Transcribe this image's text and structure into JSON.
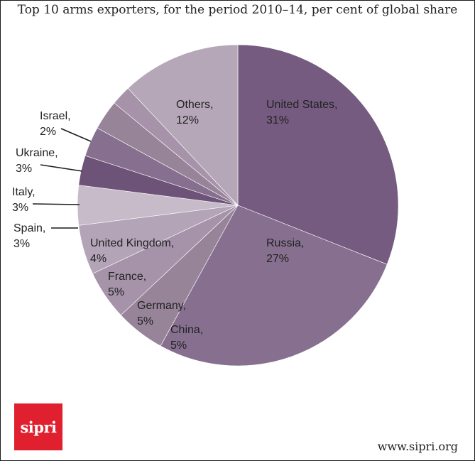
{
  "chart_data": {
    "type": "pie",
    "title": "Top 10 arms exporters, for the period 2010–14, per cent of global share",
    "value_unit": "%",
    "slices": [
      {
        "name": "United States,",
        "value": 31,
        "label": "31%",
        "color": "#755b80"
      },
      {
        "name": "Russia,",
        "value": 27,
        "label": "27%",
        "color": "#866f8f"
      },
      {
        "name": "China,",
        "value": 5,
        "label": "5%",
        "color": "#978499"
      },
      {
        "name": "Germany,",
        "value": 5,
        "label": "5%",
        "color": "#a693aa"
      },
      {
        "name": "France,",
        "value": 5,
        "label": "5%",
        "color": "#b4a4b8"
      },
      {
        "name": "United Kingdom,",
        "value": 4,
        "label": "4%",
        "color": "#c7bbc9"
      },
      {
        "name": "Spain,",
        "value": 3,
        "label": "3%",
        "color": "#6d5377"
      },
      {
        "name": "Italy,",
        "value": 3,
        "label": "3%",
        "color": "#866f8f"
      },
      {
        "name": "Ukraine,",
        "value": 3,
        "label": "3%",
        "color": "#978499"
      },
      {
        "name": "Israel,",
        "value": 2,
        "label": "2%",
        "color": "#a693aa"
      },
      {
        "name": "Others,",
        "value": 12,
        "label": "12%",
        "color": "#b5a6b8"
      }
    ]
  },
  "logo": {
    "text": "sipri",
    "color": "#e0202f"
  },
  "footer": {
    "source": "www.sipri.org"
  }
}
